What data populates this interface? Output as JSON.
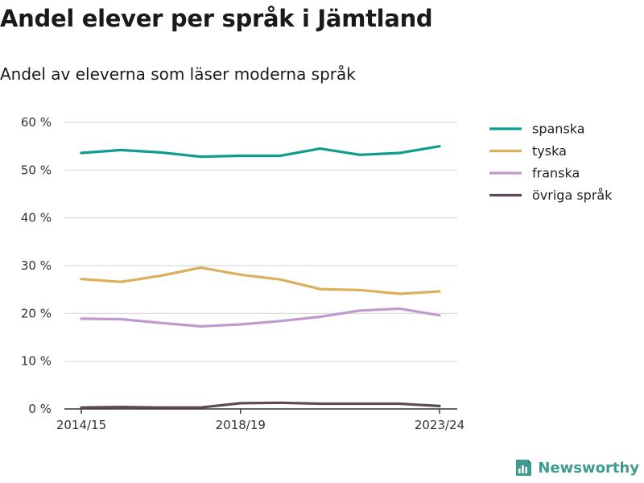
{
  "title": "Andel elever per språk i Jämtland",
  "subtitle": "Andel av eleverna som läser moderna språk",
  "brand": {
    "name": "Newsworthy",
    "icon": "newsworthy-logo-icon",
    "color": "#3f9b8f"
  },
  "chart_data": {
    "type": "line",
    "title": "Andel elever per språk i Jämtland",
    "subtitle": "Andel av eleverna som läser moderna språk",
    "x": [
      "2014/15",
      "2015/16",
      "2016/17",
      "2017/18",
      "2018/19",
      "2019/20",
      "2020/21",
      "2021/22",
      "2022/23",
      "2023/24"
    ],
    "x_tick_labels": [
      "2014/15",
      "2018/19",
      "2023/24"
    ],
    "y_ticks": [
      0,
      10,
      20,
      30,
      40,
      50,
      60
    ],
    "y_tick_labels": [
      "0 %",
      "10 %",
      "20 %",
      "30 %",
      "40 %",
      "50 %",
      "60 %"
    ],
    "ylim": [
      0,
      60
    ],
    "grid": true,
    "legend_position": "right",
    "series": [
      {
        "name": "spanska",
        "color": "#0f9c8f",
        "values": [
          53.6,
          54.2,
          53.7,
          52.8,
          53.0,
          53.0,
          54.5,
          53.2,
          53.6,
          55.0
        ]
      },
      {
        "name": "tyska",
        "color": "#dcb05a",
        "values": [
          27.2,
          26.6,
          27.9,
          29.6,
          28.1,
          27.1,
          25.1,
          24.9,
          24.1,
          24.6
        ]
      },
      {
        "name": "franska",
        "color": "#c299cf",
        "values": [
          18.9,
          18.8,
          18.0,
          17.3,
          17.7,
          18.4,
          19.3,
          20.6,
          21.0,
          19.6
        ]
      },
      {
        "name": "övriga språk",
        "color": "#5c4a55",
        "values": [
          0.3,
          0.4,
          0.3,
          0.3,
          1.2,
          1.3,
          1.1,
          1.1,
          1.1,
          0.6
        ]
      }
    ]
  }
}
